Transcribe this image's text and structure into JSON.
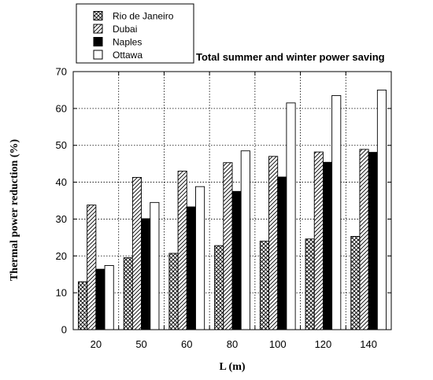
{
  "chart_data": {
    "type": "bar",
    "title": "Total summer and winter power saving",
    "xlabel": "L (m)",
    "ylabel": "Thermal power reduction (%)",
    "categories": [
      "20",
      "50",
      "60",
      "80",
      "100",
      "120",
      "140"
    ],
    "ylim": [
      0,
      70
    ],
    "yticks": [
      0,
      10,
      20,
      30,
      40,
      50,
      60,
      70
    ],
    "grid": true,
    "legend_position": "top-left",
    "series": [
      {
        "name": "Rio de Janeiro",
        "pattern": "crosshatch",
        "values": [
          13,
          19.5,
          20.7,
          22.8,
          24,
          24.6,
          25.3
        ]
      },
      {
        "name": "Dubai",
        "pattern": "diagonal",
        "values": [
          33.8,
          41.3,
          43,
          45.3,
          47,
          48.2,
          48.9
        ]
      },
      {
        "name": "Naples",
        "pattern": "solid-black",
        "values": [
          16.4,
          30.1,
          33.3,
          37.5,
          41.4,
          45.4,
          48.1
        ]
      },
      {
        "name": "Ottawa",
        "pattern": "solid-white",
        "values": [
          17.4,
          34.5,
          38.8,
          48.5,
          61.5,
          63.5,
          65
        ]
      }
    ]
  }
}
